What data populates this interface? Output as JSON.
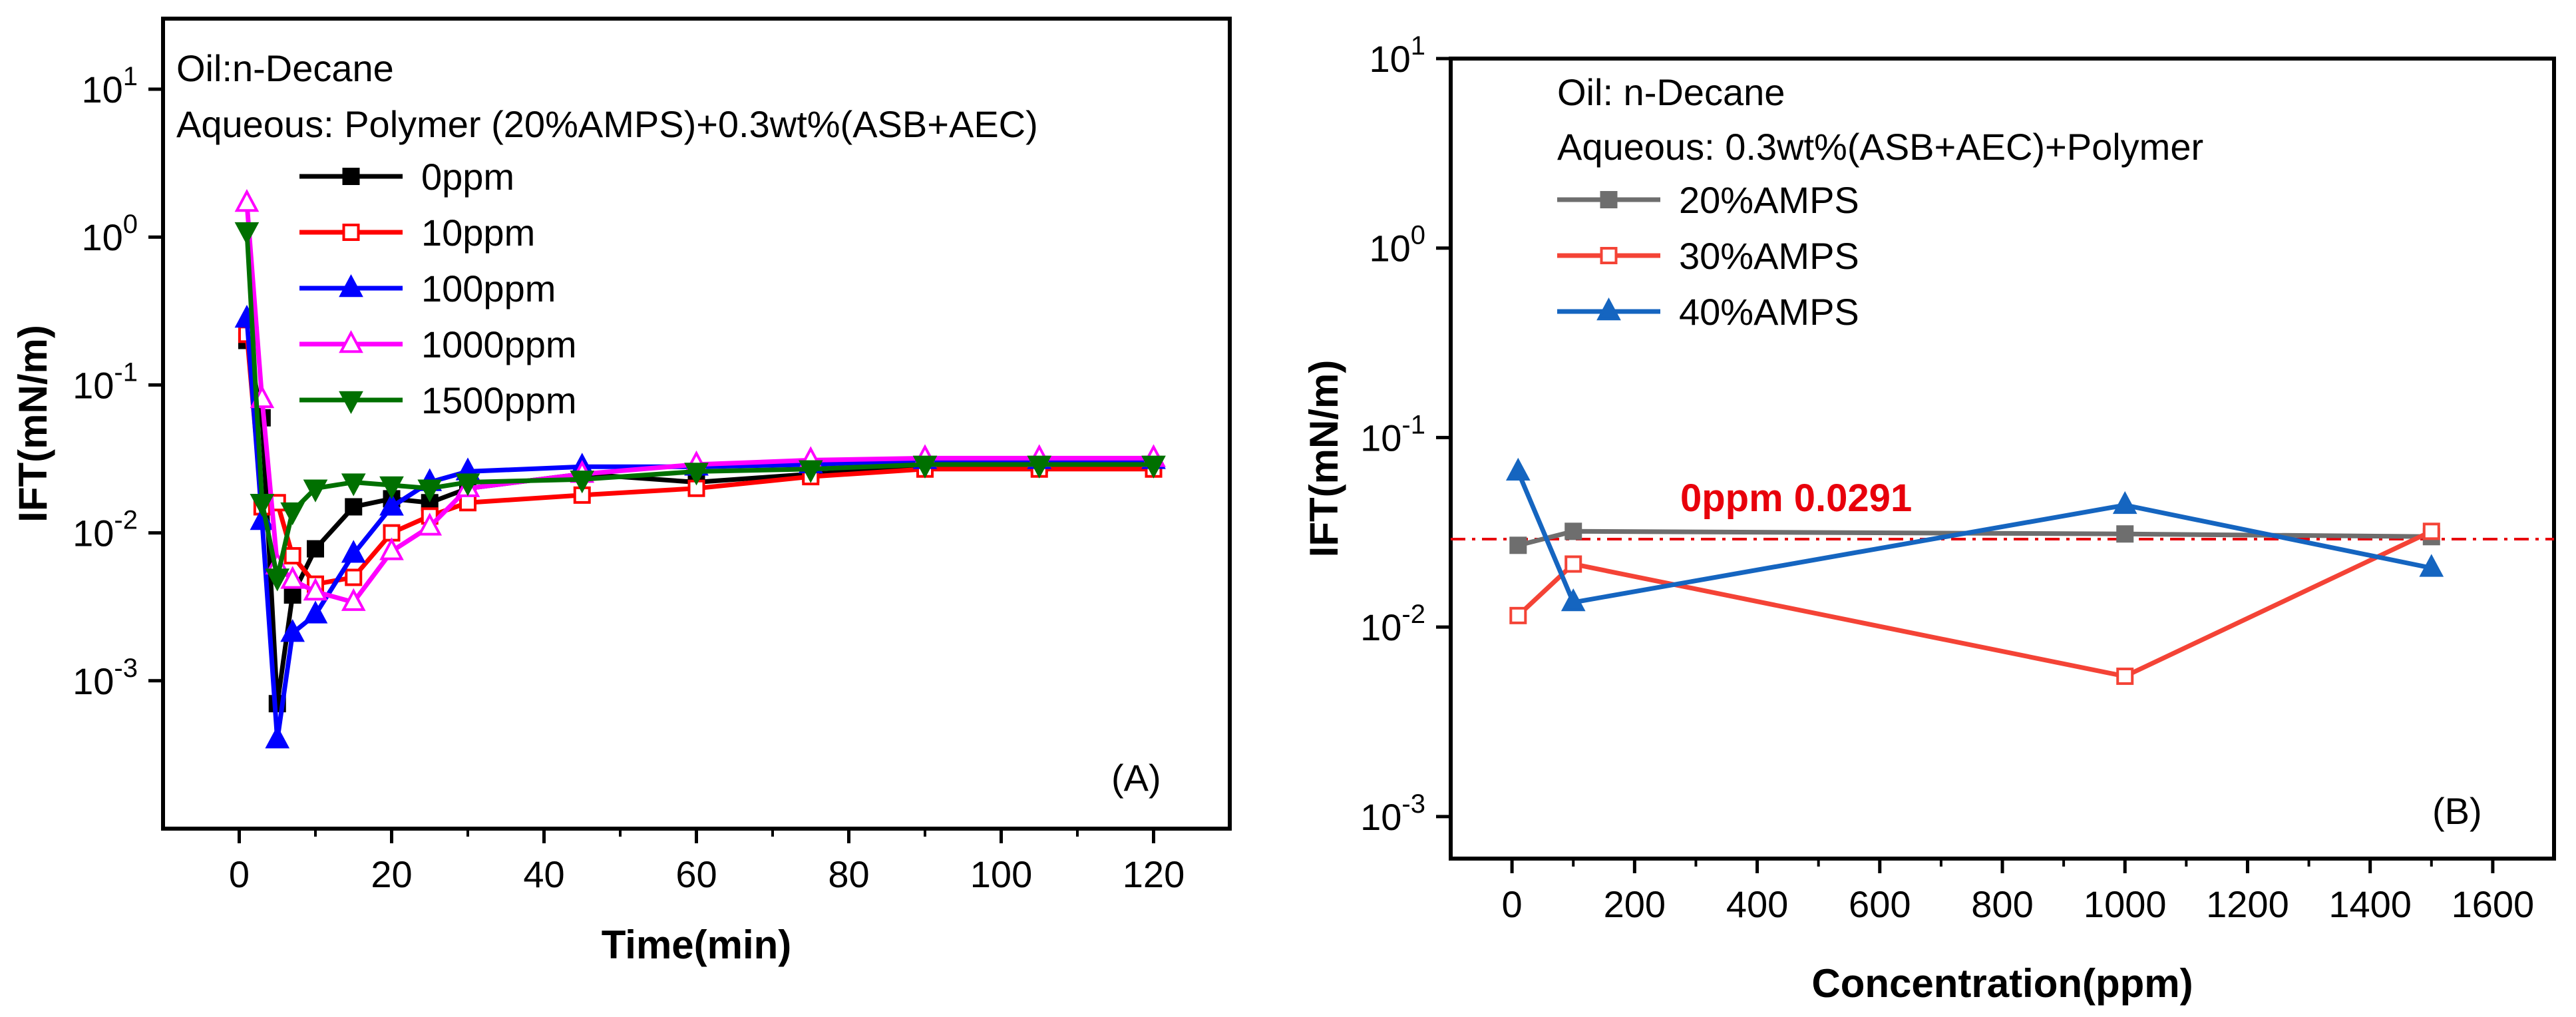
{
  "chart_data": [
    {
      "id": "A",
      "type": "line",
      "xscale": "linear",
      "yscale": "log",
      "title": "",
      "xlabel": "Time(min)",
      "ylabel": "IFT(mN/m)",
      "xlim": [
        -10,
        130
      ],
      "ylim": [
        0.0001,
        30
      ],
      "xticks": [
        0,
        20,
        40,
        60,
        80,
        100,
        120
      ],
      "yticks": [
        {
          "value": 0.001,
          "base": "10",
          "exp": "-3"
        },
        {
          "value": 0.01,
          "base": "10",
          "exp": "-2"
        },
        {
          "value": 0.1,
          "base": "10",
          "exp": "-1"
        },
        {
          "value": 1,
          "base": "10",
          "exp": "0"
        },
        {
          "value": 10,
          "base": "10",
          "exp": "1"
        }
      ],
      "annotations": [
        "Oil:n-Decane",
        "Aqueous: Polymer (20%AMPS)+0.3wt%(ASB+AEC)"
      ],
      "panel_label": "(A)",
      "legend_position": "top-left",
      "series": [
        {
          "name": "0ppm",
          "color": "#000000",
          "marker": "square",
          "filled": true,
          "x": [
            1,
            3,
            5,
            7,
            10,
            15,
            20,
            25,
            30,
            45,
            60,
            75,
            90,
            105,
            120
          ],
          "y": [
            0.2,
            0.06,
            0.0007,
            0.0038,
            0.0078,
            0.015,
            0.017,
            0.016,
            0.02,
            0.025,
            0.022,
            0.025,
            0.028,
            0.029,
            0.029
          ]
        },
        {
          "name": "10ppm",
          "color": "#ff0000",
          "marker": "square",
          "filled": false,
          "x": [
            1,
            3,
            5,
            7,
            10,
            15,
            20,
            25,
            30,
            45,
            60,
            75,
            90,
            105,
            120
          ],
          "y": [
            0.22,
            0.015,
            0.016,
            0.007,
            0.0045,
            0.005,
            0.01,
            0.013,
            0.016,
            0.018,
            0.02,
            0.024,
            0.027,
            0.027,
            0.027
          ]
        },
        {
          "name": "100ppm",
          "color": "#0000ff",
          "marker": "triangle-up",
          "filled": true,
          "x": [
            1,
            3,
            5,
            7,
            10,
            15,
            20,
            25,
            30,
            45,
            60,
            75,
            90,
            105,
            120
          ],
          "y": [
            0.28,
            0.012,
            0.0004,
            0.0021,
            0.0028,
            0.0072,
            0.015,
            0.022,
            0.026,
            0.028,
            0.028,
            0.029,
            0.031,
            0.031,
            0.031
          ]
        },
        {
          "name": "1000ppm",
          "color": "#ff00ff",
          "marker": "triangle-up",
          "filled": false,
          "x": [
            1,
            3,
            5,
            7,
            10,
            15,
            20,
            25,
            30,
            45,
            60,
            75,
            90,
            105,
            120
          ],
          "y": [
            1.7,
            0.08,
            0.006,
            0.0048,
            0.004,
            0.0034,
            0.0075,
            0.011,
            0.02,
            0.025,
            0.029,
            0.031,
            0.032,
            0.032,
            0.032
          ]
        },
        {
          "name": "1500ppm",
          "color": "#007000",
          "marker": "triangle-down",
          "filled": true,
          "x": [
            1,
            3,
            5,
            7,
            10,
            15,
            20,
            25,
            30,
            45,
            60,
            75,
            90,
            105,
            120
          ],
          "y": [
            1.1,
            0.016,
            0.005,
            0.014,
            0.02,
            0.022,
            0.021,
            0.02,
            0.022,
            0.023,
            0.026,
            0.027,
            0.029,
            0.029,
            0.029
          ]
        }
      ]
    },
    {
      "id": "B",
      "type": "line",
      "xscale": "linear",
      "yscale": "log",
      "title": "",
      "xlabel": "Concentration(ppm)",
      "ylabel": "IFT(mN/m)",
      "xlim": [
        -100,
        1700
      ],
      "ylim": [
        0.0006,
        10
      ],
      "xticks": [
        0,
        200,
        400,
        600,
        800,
        1000,
        1200,
        1400,
        1600
      ],
      "yticks": [
        {
          "value": 0.001,
          "base": "10",
          "exp": "-3"
        },
        {
          "value": 0.01,
          "base": "10",
          "exp": "-2"
        },
        {
          "value": 0.1,
          "base": "10",
          "exp": "-1"
        },
        {
          "value": 1,
          "base": "10",
          "exp": "0"
        },
        {
          "value": 10,
          "base": "10",
          "exp": "1"
        }
      ],
      "annotations": [
        "Oil: n-Decane",
        "Aqueous: 0.3wt%(ASB+AEC)+Polymer"
      ],
      "panel_label": "(B)",
      "legend_position": "top-left",
      "reference_line": {
        "label": "0ppm 0.0291",
        "value": 0.0291,
        "color": "#e8000b",
        "style": "dash-dot"
      },
      "series": [
        {
          "name": "20%AMPS",
          "color": "#6e6e6e",
          "marker": "square",
          "filled": true,
          "x": [
            10,
            100,
            1000,
            1500
          ],
          "y": [
            0.027,
            0.032,
            0.031,
            0.03
          ]
        },
        {
          "name": "30%AMPS",
          "color": "#f44336",
          "marker": "square",
          "filled": false,
          "x": [
            10,
            100,
            1000,
            1500
          ],
          "y": [
            0.0115,
            0.0215,
            0.0055,
            0.032
          ]
        },
        {
          "name": "40%AMPS",
          "color": "#1565c0",
          "marker": "triangle-up",
          "filled": true,
          "x": [
            10,
            100,
            1000,
            1500
          ],
          "y": [
            0.066,
            0.0135,
            0.044,
            0.0205
          ]
        }
      ]
    }
  ]
}
